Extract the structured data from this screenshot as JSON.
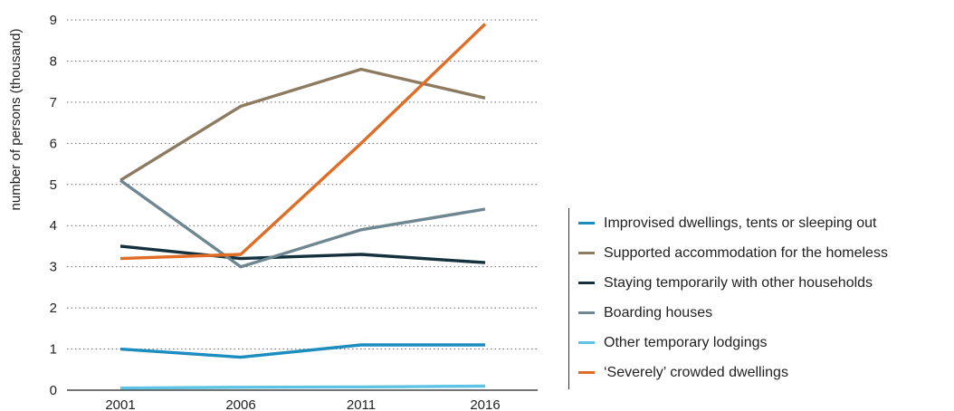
{
  "chart_data": {
    "type": "line",
    "title": "",
    "xlabel": "",
    "ylabel": "number of persons (thousand)",
    "categories": [
      "2001",
      "2006",
      "2011",
      "2016"
    ],
    "yticks": [
      0,
      1,
      2,
      3,
      4,
      5,
      6,
      7,
      8,
      9
    ],
    "ylim": [
      0,
      9
    ],
    "grid": "horizontal-dotted",
    "legend_position": "right",
    "series": [
      {
        "name": "Improvised dwellings, tents or sleeping out",
        "color": "#1d8cbf",
        "values": [
          1.0,
          0.8,
          1.1,
          1.1
        ]
      },
      {
        "name": "Supported accommodation for the homeless",
        "color": "#8c7b60",
        "values": [
          5.1,
          6.9,
          7.8,
          7.1
        ]
      },
      {
        "name": "Staying temporarily with other households",
        "color": "#14313d",
        "values": [
          3.5,
          3.2,
          3.3,
          3.1
        ]
      },
      {
        "name": "Boarding houses",
        "color": "#6f8790",
        "values": [
          5.1,
          3.0,
          3.9,
          4.4
        ]
      },
      {
        "name": "Other temporary lodgings",
        "color": "#5fc3e4",
        "values": [
          0.05,
          0.07,
          0.08,
          0.1
        ]
      },
      {
        "name": "‘Severely’ crowded dwellings",
        "color": "#e06d25",
        "values": [
          3.2,
          3.3,
          6.0,
          8.9
        ]
      }
    ]
  }
}
